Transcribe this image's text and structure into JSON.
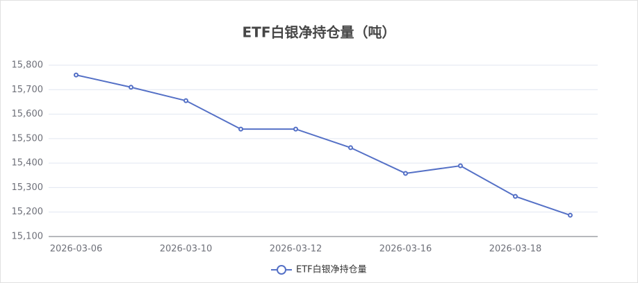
{
  "chart_data": {
    "type": "line",
    "title": "ETF白银净持仓量（吨）",
    "categories": [
      "2026-03-06",
      null,
      "2026-03-10",
      null,
      "2026-03-12",
      null,
      "2026-03-16",
      null,
      "2026-03-18",
      null
    ],
    "series": [
      {
        "name": "ETF白银净持仓量",
        "color": "#5470c6",
        "values": [
          15760,
          15710,
          15655,
          15539,
          15539,
          15463,
          15358,
          15389,
          15264,
          15187
        ]
      }
    ],
    "ylim": [
      15100,
      15800
    ],
    "yticks": [
      {
        "value": 15100,
        "label": "15,100"
      },
      {
        "value": 15200,
        "label": "15,200"
      },
      {
        "value": 15300,
        "label": "15,300"
      },
      {
        "value": 15400,
        "label": "15,400"
      },
      {
        "value": 15500,
        "label": "15,500"
      },
      {
        "value": 15600,
        "label": "15,600"
      },
      {
        "value": 15700,
        "label": "15,700"
      },
      {
        "value": 15800,
        "label": "15,800"
      }
    ],
    "grid": true
  }
}
